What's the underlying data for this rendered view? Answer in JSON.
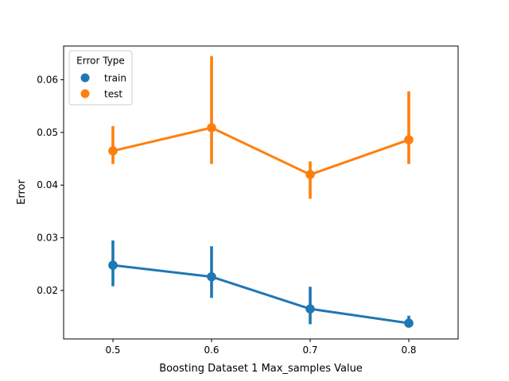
{
  "chart_data": {
    "type": "line",
    "title": "",
    "xlabel": "Boosting Dataset 1 Max_samples Value",
    "ylabel": "Error",
    "categories": [
      "0.5",
      "0.6",
      "0.7",
      "0.8"
    ],
    "ylim": [
      0.0108,
      0.0664
    ],
    "yticks": [
      "0.02",
      "0.03",
      "0.04",
      "0.05",
      "0.06"
    ],
    "grid": false,
    "legend": {
      "title": "Error Type",
      "placement": "top-left"
    },
    "series": [
      {
        "name": "train",
        "color": "#1f77b4",
        "values": [
          0.0248,
          0.0226,
          0.0165,
          0.0138
        ],
        "ci_low": [
          0.0208,
          0.0186,
          0.0136,
          0.0133
        ],
        "ci_high": [
          0.0295,
          0.0284,
          0.0207,
          0.0152
        ]
      },
      {
        "name": "test",
        "color": "#ff7f0e",
        "values": [
          0.0465,
          0.0509,
          0.042,
          0.0486
        ],
        "ci_low": [
          0.044,
          0.044,
          0.0374,
          0.044
        ],
        "ci_high": [
          0.0512,
          0.0645,
          0.0445,
          0.0578
        ]
      }
    ]
  }
}
